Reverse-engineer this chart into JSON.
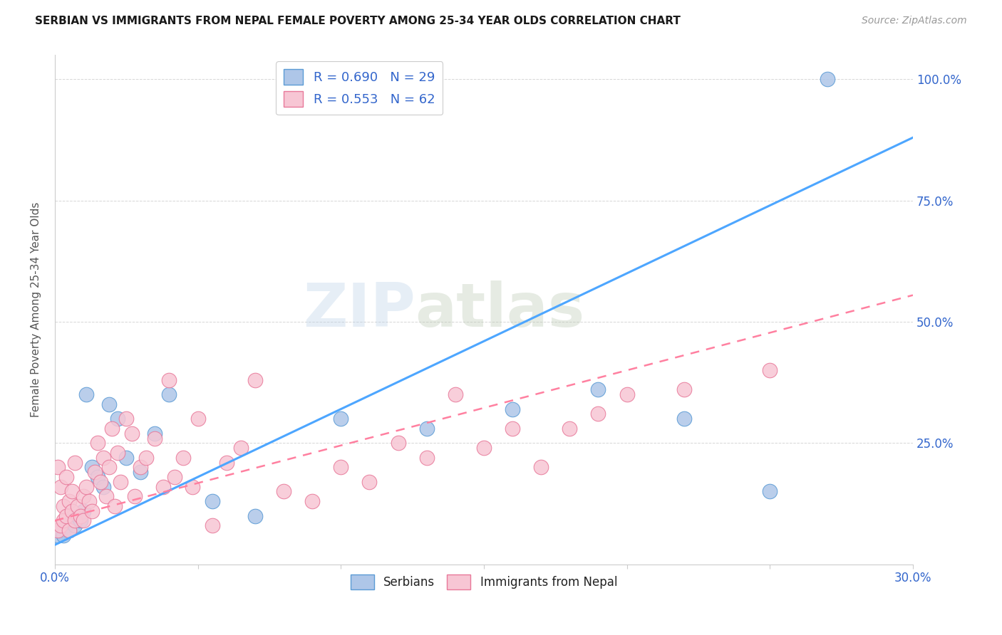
{
  "title": "SERBIAN VS IMMIGRANTS FROM NEPAL FEMALE POVERTY AMONG 25-34 YEAR OLDS CORRELATION CHART",
  "source": "Source: ZipAtlas.com",
  "ylabel_label": "Female Poverty Among 25-34 Year Olds",
  "xlim": [
    0.0,
    0.3
  ],
  "ylim": [
    0.0,
    1.05
  ],
  "xticks": [
    0.0,
    0.05,
    0.1,
    0.15,
    0.2,
    0.25,
    0.3
  ],
  "xticklabels": [
    "0.0%",
    "",
    "",
    "",
    "",
    "",
    "30.0%"
  ],
  "yticks": [
    0.25,
    0.5,
    0.75,
    1.0
  ],
  "yticklabels": [
    "25.0%",
    "50.0%",
    "75.0%",
    "100.0%"
  ],
  "serbian_color": "#aec6e8",
  "serbian_edge": "#5b9bd5",
  "nepal_color": "#f7c6d4",
  "nepal_edge": "#e8799a",
  "line_serbian_color": "#4da6ff",
  "line_nepal_color": "#ff80a0",
  "R_serbian": 0.69,
  "N_serbian": 29,
  "R_nepal": 0.553,
  "N_nepal": 62,
  "watermark_zip": "ZIP",
  "watermark_atlas": "atlas",
  "serbian_x": [
    0.001,
    0.002,
    0.003,
    0.004,
    0.005,
    0.006,
    0.007,
    0.008,
    0.009,
    0.01,
    0.011,
    0.013,
    0.015,
    0.017,
    0.019,
    0.022,
    0.025,
    0.03,
    0.035,
    0.04,
    0.055,
    0.07,
    0.1,
    0.13,
    0.16,
    0.19,
    0.22,
    0.25,
    0.27
  ],
  "serbian_y": [
    0.06,
    0.07,
    0.06,
    0.08,
    0.07,
    0.09,
    0.08,
    0.1,
    0.09,
    0.11,
    0.35,
    0.2,
    0.18,
    0.16,
    0.33,
    0.3,
    0.22,
    0.19,
    0.27,
    0.35,
    0.13,
    0.1,
    0.3,
    0.28,
    0.32,
    0.36,
    0.3,
    0.15,
    1.0
  ],
  "nepal_x": [
    0.001,
    0.001,
    0.002,
    0.002,
    0.003,
    0.003,
    0.004,
    0.004,
    0.005,
    0.005,
    0.006,
    0.006,
    0.007,
    0.007,
    0.008,
    0.009,
    0.01,
    0.01,
    0.011,
    0.012,
    0.013,
    0.014,
    0.015,
    0.016,
    0.017,
    0.018,
    0.019,
    0.02,
    0.021,
    0.022,
    0.023,
    0.025,
    0.027,
    0.028,
    0.03,
    0.032,
    0.035,
    0.038,
    0.04,
    0.042,
    0.045,
    0.048,
    0.05,
    0.055,
    0.06,
    0.065,
    0.07,
    0.08,
    0.09,
    0.1,
    0.11,
    0.12,
    0.13,
    0.14,
    0.15,
    0.16,
    0.17,
    0.18,
    0.19,
    0.2,
    0.22,
    0.25
  ],
  "nepal_y": [
    0.07,
    0.2,
    0.08,
    0.16,
    0.09,
    0.12,
    0.1,
    0.18,
    0.07,
    0.13,
    0.11,
    0.15,
    0.09,
    0.21,
    0.12,
    0.1,
    0.14,
    0.09,
    0.16,
    0.13,
    0.11,
    0.19,
    0.25,
    0.17,
    0.22,
    0.14,
    0.2,
    0.28,
    0.12,
    0.23,
    0.17,
    0.3,
    0.27,
    0.14,
    0.2,
    0.22,
    0.26,
    0.16,
    0.38,
    0.18,
    0.22,
    0.16,
    0.3,
    0.08,
    0.21,
    0.24,
    0.38,
    0.15,
    0.13,
    0.2,
    0.17,
    0.25,
    0.22,
    0.35,
    0.24,
    0.28,
    0.2,
    0.28,
    0.31,
    0.35,
    0.36,
    0.4
  ],
  "reg_serbian_slope": 2.8,
  "reg_serbian_intercept": 0.04,
  "reg_nepal_slope": 1.55,
  "reg_nepal_intercept": 0.09
}
